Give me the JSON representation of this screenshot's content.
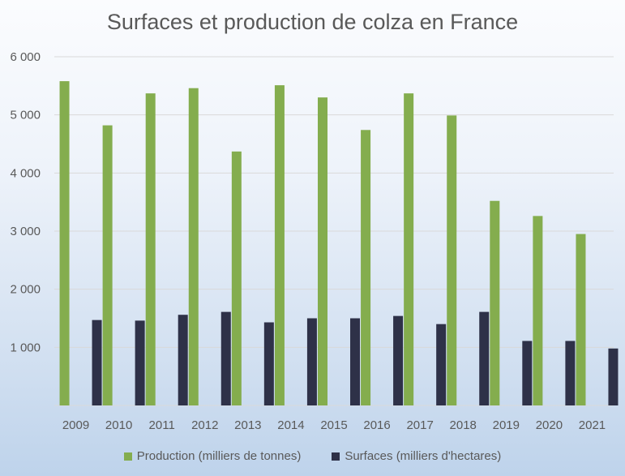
{
  "chart_data": {
    "type": "bar",
    "title": "Surfaces et production de colza en France",
    "categories": [
      "2009",
      "2010",
      "2011",
      "2012",
      "2013",
      "2014",
      "2015",
      "2016",
      "2017",
      "2018",
      "2019",
      "2020",
      "2021"
    ],
    "series": [
      {
        "name": "Production (milliers de tonnes)",
        "color": "#84ad4e",
        "values": [
          5580,
          4820,
          5370,
          5460,
          4370,
          5510,
          5300,
          4740,
          5370,
          4990,
          3520,
          3260,
          2950
        ]
      },
      {
        "name": "Surfaces (milliers d'hectares)",
        "color": "#2e3148",
        "values": [
          1470,
          1460,
          1560,
          1610,
          1430,
          1500,
          1500,
          1540,
          1400,
          1610,
          1110,
          1110,
          980
        ]
      }
    ],
    "ylim": [
      0,
      6000
    ],
    "yticks": [
      1000,
      2000,
      3000,
      4000,
      5000,
      6000
    ],
    "ytick_labels": [
      "1 000",
      "2 000",
      "3 000",
      "4 000",
      "5 000",
      "6 000"
    ],
    "grid": true,
    "legend_position": "bottom"
  }
}
